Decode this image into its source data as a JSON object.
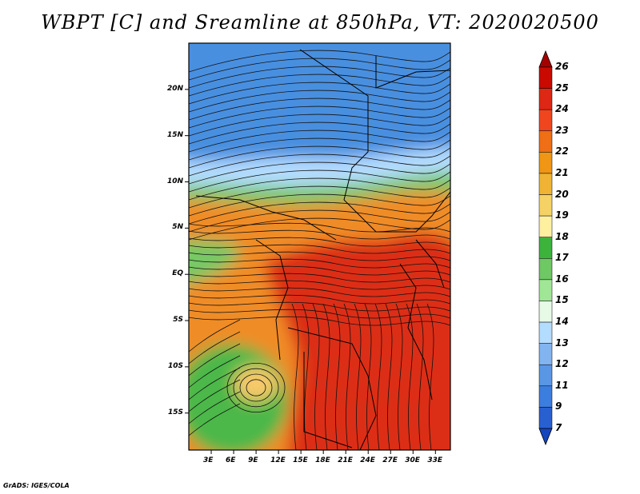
{
  "title": "WBPT [C] and Sreamline at 850hPa, VT: 2020020500",
  "credit": "GrADS: IGES/COLA",
  "map": {
    "lon_range": [
      0,
      35
    ],
    "lat_range": [
      -19,
      25
    ],
    "lon_ticks": [
      {
        "value": 3,
        "label": "3E"
      },
      {
        "value": 6,
        "label": "6E"
      },
      {
        "value": 9,
        "label": "9E"
      },
      {
        "value": 12,
        "label": "12E"
      },
      {
        "value": 15,
        "label": "15E"
      },
      {
        "value": 18,
        "label": "18E"
      },
      {
        "value": 21,
        "label": "21E"
      },
      {
        "value": 24,
        "label": "24E"
      },
      {
        "value": 27,
        "label": "27E"
      },
      {
        "value": 30,
        "label": "30E"
      },
      {
        "value": 33,
        "label": "33E"
      }
    ],
    "lat_ticks": [
      {
        "value": 20,
        "label": "20N"
      },
      {
        "value": 15,
        "label": "15N"
      },
      {
        "value": 10,
        "label": "10N"
      },
      {
        "value": 5,
        "label": "5N"
      },
      {
        "value": 0,
        "label": "EQ"
      },
      {
        "value": -5,
        "label": "5S"
      },
      {
        "value": -10,
        "label": "10S"
      },
      {
        "value": -15,
        "label": "15S"
      }
    ],
    "field_zones": [
      {
        "name": "north-blue",
        "color": "#4a8fe0"
      },
      {
        "name": "sahel-lightblue",
        "color": "#b4dcff"
      },
      {
        "name": "green-band",
        "color": "#78c865"
      },
      {
        "name": "orange-band",
        "color": "#f08c28"
      },
      {
        "name": "red-core",
        "color": "#dc2d14"
      },
      {
        "name": "southwest-green",
        "color": "#4cb84a"
      }
    ]
  },
  "colorbar": {
    "levels": [
      "26",
      "25",
      "24",
      "23",
      "22",
      "21",
      "20",
      "19",
      "18",
      "17",
      "16",
      "15",
      "14",
      "13",
      "12",
      "11",
      "9",
      "7"
    ],
    "colors": [
      "#a50000",
      "#c80a00",
      "#dc2814",
      "#f0461e",
      "#f06e14",
      "#f09614",
      "#f0b432",
      "#f5d264",
      "#fff0a0",
      "#3cb43c",
      "#6ec864",
      "#a0e696",
      "#e6fae6",
      "#b4dcff",
      "#82b4f0",
      "#5a96e6",
      "#3c7de0",
      "#2860d2",
      "#1446be"
    ],
    "extends": "both"
  }
}
